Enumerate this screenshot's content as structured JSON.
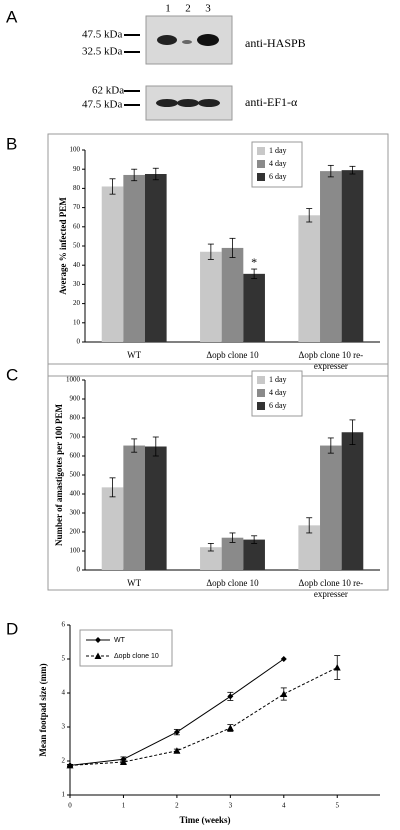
{
  "panel_labels": [
    "A",
    "B",
    "C",
    "D"
  ],
  "blot": {
    "lanes": [
      "1",
      "2",
      "3"
    ],
    "top": {
      "markers": [
        "47.5 kDa",
        "32.5 kDa"
      ],
      "antibody": "anti-HASPB"
    },
    "bottom": {
      "markers": [
        "62 kDa",
        "47.5 kDa"
      ],
      "antibody": "anti-EF1-α"
    }
  },
  "chart_data": [
    {
      "type": "bar",
      "y_label": "Average % infected PEM",
      "categories": [
        "WT",
        "Δopb clone 10",
        "Δopb clone 10 re-expresser"
      ],
      "series": [
        {
          "name": "1 day",
          "color": "#c8c8c8",
          "values": [
            81,
            47,
            66
          ],
          "errors": [
            4,
            4,
            3.5
          ]
        },
        {
          "name": "4 day",
          "color": "#8a8a8a",
          "values": [
            87,
            49,
            89
          ],
          "errors": [
            3,
            5,
            3
          ]
        },
        {
          "name": "6 day",
          "color": "#333333",
          "values": [
            87.5,
            35.5,
            89.5
          ],
          "errors": [
            3,
            2.5,
            2
          ]
        }
      ],
      "annotation": "*",
      "ylim": [
        0,
        100
      ],
      "yticks": [
        0,
        10,
        20,
        30,
        40,
        50,
        60,
        70,
        80,
        90,
        100
      ],
      "legend": "upper right"
    },
    {
      "type": "bar",
      "y_label": "Number of amastigotes per 100 PEM",
      "categories": [
        "WT",
        "Δopb clone 10",
        "Δopb clone 10 re-expresser"
      ],
      "series": [
        {
          "name": "1 day",
          "color": "#c8c8c8",
          "values": [
            435,
            120,
            235
          ],
          "errors": [
            50,
            20,
            40
          ]
        },
        {
          "name": "4 day",
          "color": "#8a8a8a",
          "values": [
            655,
            170,
            655
          ],
          "errors": [
            35,
            25,
            40
          ]
        },
        {
          "name": "6 day",
          "color": "#333333",
          "values": [
            650,
            160,
            725
          ],
          "errors": [
            50,
            20,
            65
          ]
        }
      ],
      "ylim": [
        0,
        1000
      ],
      "yticks": [
        0,
        100,
        200,
        300,
        400,
        500,
        600,
        700,
        800,
        900,
        1000
      ],
      "legend": "upper right"
    },
    {
      "type": "line",
      "x_label": "Time (weeks)",
      "y_label": "Mean footpad size (mm)",
      "x": [
        0,
        1,
        2,
        3,
        4,
        5
      ],
      "series": [
        {
          "name": "WT",
          "color": "#000000",
          "line_style": "solid",
          "marker": "diamond",
          "values": [
            1.87,
            2.05,
            2.85,
            3.9,
            5.0,
            null
          ],
          "errors": [
            0.03,
            0.07,
            0.08,
            0.12,
            0,
            null
          ]
        },
        {
          "name": "Δopb clone 10",
          "color": "#000000",
          "line_style": "dashed",
          "marker": "triangle",
          "values": [
            1.87,
            1.97,
            2.3,
            2.97,
            3.97,
            4.75
          ],
          "errors": [
            0.03,
            0.05,
            0.05,
            0.1,
            0.18,
            0.35
          ]
        }
      ],
      "xlim": [
        0,
        5.8
      ],
      "xticks": [
        0,
        1,
        2,
        3,
        4,
        5
      ],
      "ylim": [
        1,
        6
      ],
      "yticks": [
        1,
        2,
        3,
        4,
        5,
        6
      ],
      "legend": "upper left"
    }
  ]
}
